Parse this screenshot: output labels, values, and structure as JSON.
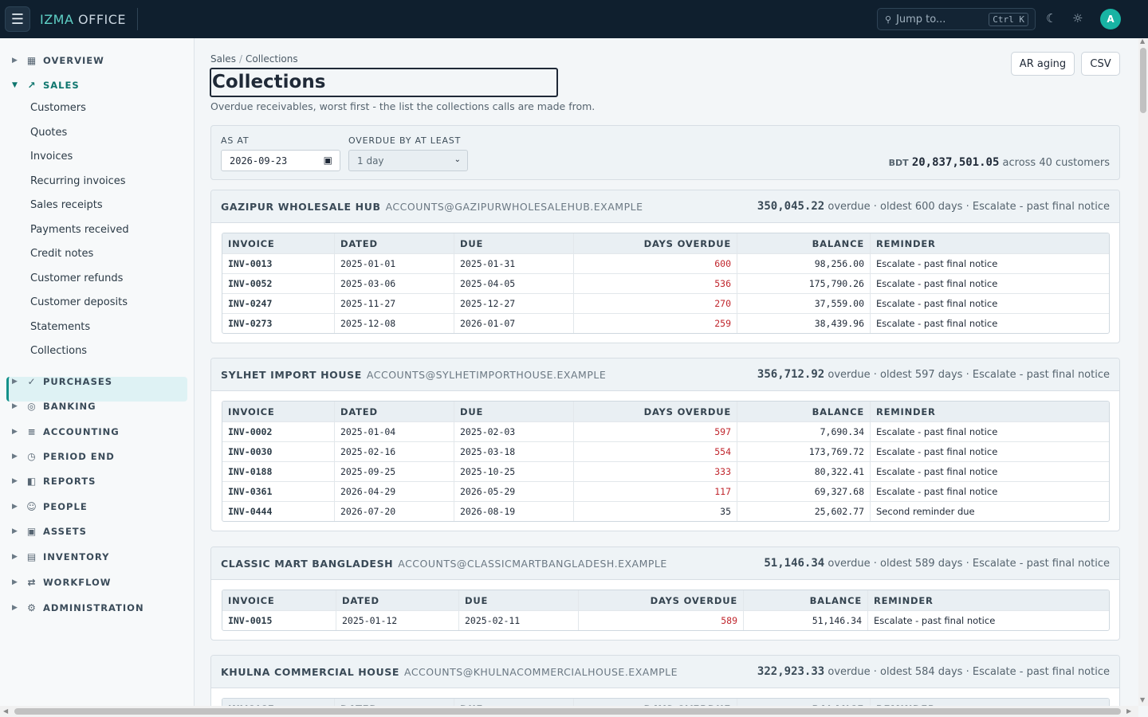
{
  "app": {
    "brand_1": "IZMA",
    "brand_2": "OFFICE",
    "menu_icon": "☰",
    "user_initial": "A"
  },
  "search": {
    "placeholder": "Jump to...",
    "shortcut": "Ctrl K"
  },
  "sidebar": {
    "sections": [
      {
        "label": "OVERVIEW",
        "icon": "grid-icon",
        "glyph": "▦",
        "open": false
      },
      {
        "label": "SALES",
        "icon": "trend-icon",
        "glyph": "↗",
        "open": true
      },
      {
        "label": "PURCHASES",
        "icon": "check-icon",
        "glyph": "✓",
        "open": false
      },
      {
        "label": "BANKING",
        "icon": "bank-icon",
        "glyph": "◎",
        "open": false
      },
      {
        "label": "ACCOUNTING",
        "icon": "ledger-icon",
        "glyph": "≡",
        "open": false
      },
      {
        "label": "PERIOD END",
        "icon": "clock-icon",
        "glyph": "◷",
        "open": false
      },
      {
        "label": "REPORTS",
        "icon": "report-icon",
        "glyph": "◧",
        "open": false
      },
      {
        "label": "PEOPLE",
        "icon": "people-icon",
        "glyph": "☺",
        "open": false
      },
      {
        "label": "ASSETS",
        "icon": "assets-icon",
        "glyph": "▣",
        "open": false
      },
      {
        "label": "INVENTORY",
        "icon": "inventory-icon",
        "glyph": "▤",
        "open": false
      },
      {
        "label": "WORKFLOW",
        "icon": "workflow-icon",
        "glyph": "⇄",
        "open": false
      },
      {
        "label": "ADMINISTRATION",
        "icon": "settings-icon",
        "glyph": "⚙",
        "open": false
      }
    ],
    "sales_items": [
      "Customers",
      "Quotes",
      "Invoices",
      "Recurring invoices",
      "Sales receipts",
      "Payments received",
      "Credit notes",
      "Customer refunds",
      "Customer deposits",
      "Statements",
      "Collections"
    ],
    "active_item": "Collections"
  },
  "breadcrumb": {
    "parent": "Sales",
    "separator": "/",
    "current": "Collections"
  },
  "page": {
    "title": "Collections",
    "subtitle": "Overdue receivables, worst first - the list the collections calls are made from.",
    "actions": {
      "ar_aging": "AR aging",
      "csv": "CSV"
    }
  },
  "filters": {
    "as_at_label": "AS AT",
    "as_at_value": "2026-09-23",
    "overdue_label": "OVERDUE BY AT LEAST",
    "overdue_value": "1 day",
    "currency": "BDT",
    "total": "20,837,501.05",
    "total_suffix": "across 40 customers"
  },
  "table_headers": [
    "INVOICE",
    "DATED",
    "DUE",
    "DAYS OVERDUE",
    "BALANCE",
    "REMINDER"
  ],
  "customers": [
    {
      "name": "GAZIPUR WHOLESALE HUB",
      "email": "ACCOUNTS@GAZIPURWHOLESALEHUB.EXAMPLE",
      "overdue": "350,045.22",
      "summary": "overdue · oldest 600 days · Escalate - past final notice",
      "rows": [
        {
          "invoice": "INV-0013",
          "dated": "2025-01-01",
          "due": "2025-01-31",
          "days": "600",
          "balance": "98,256.00",
          "reminder": "Escalate - past final notice",
          "urgent": true
        },
        {
          "invoice": "INV-0052",
          "dated": "2025-03-06",
          "due": "2025-04-05",
          "days": "536",
          "balance": "175,790.26",
          "reminder": "Escalate - past final notice",
          "urgent": true
        },
        {
          "invoice": "INV-0247",
          "dated": "2025-11-27",
          "due": "2025-12-27",
          "days": "270",
          "balance": "37,559.00",
          "reminder": "Escalate - past final notice",
          "urgent": true
        },
        {
          "invoice": "INV-0273",
          "dated": "2025-12-08",
          "due": "2026-01-07",
          "days": "259",
          "balance": "38,439.96",
          "reminder": "Escalate - past final notice",
          "urgent": true
        }
      ]
    },
    {
      "name": "SYLHET IMPORT HOUSE",
      "email": "ACCOUNTS@SYLHETIMPORTHOUSE.EXAMPLE",
      "overdue": "356,712.92",
      "summary": "overdue · oldest 597 days · Escalate - past final notice",
      "rows": [
        {
          "invoice": "INV-0002",
          "dated": "2025-01-04",
          "due": "2025-02-03",
          "days": "597",
          "balance": "7,690.34",
          "reminder": "Escalate - past final notice",
          "urgent": true
        },
        {
          "invoice": "INV-0030",
          "dated": "2025-02-16",
          "due": "2025-03-18",
          "days": "554",
          "balance": "173,769.72",
          "reminder": "Escalate - past final notice",
          "urgent": true
        },
        {
          "invoice": "INV-0188",
          "dated": "2025-09-25",
          "due": "2025-10-25",
          "days": "333",
          "balance": "80,322.41",
          "reminder": "Escalate - past final notice",
          "urgent": true
        },
        {
          "invoice": "INV-0361",
          "dated": "2026-04-29",
          "due": "2026-05-29",
          "days": "117",
          "balance": "69,327.68",
          "reminder": "Escalate - past final notice",
          "urgent": true
        },
        {
          "invoice": "INV-0444",
          "dated": "2026-07-20",
          "due": "2026-08-19",
          "days": "35",
          "balance": "25,602.77",
          "reminder": "Second reminder due",
          "urgent": false
        }
      ]
    },
    {
      "name": "CLASSIC MART BANGLADESH",
      "email": "ACCOUNTS@CLASSICMARTBANGLADESH.EXAMPLE",
      "overdue": "51,146.34",
      "summary": "overdue · oldest 589 days · Escalate - past final notice",
      "rows": [
        {
          "invoice": "INV-0015",
          "dated": "2025-01-12",
          "due": "2025-02-11",
          "days": "589",
          "balance": "51,146.34",
          "reminder": "Escalate - past final notice",
          "urgent": true
        }
      ]
    },
    {
      "name": "KHULNA COMMERCIAL HOUSE",
      "email": "ACCOUNTS@KHULNACOMMERCIALHOUSE.EXAMPLE",
      "overdue": "322,923.33",
      "summary": "overdue · oldest 584 days · Escalate - past final notice",
      "rows": []
    }
  ],
  "colors": {
    "accent": "#14918a",
    "topbar": "#0f1f2e",
    "urgent": "#c0262d"
  }
}
